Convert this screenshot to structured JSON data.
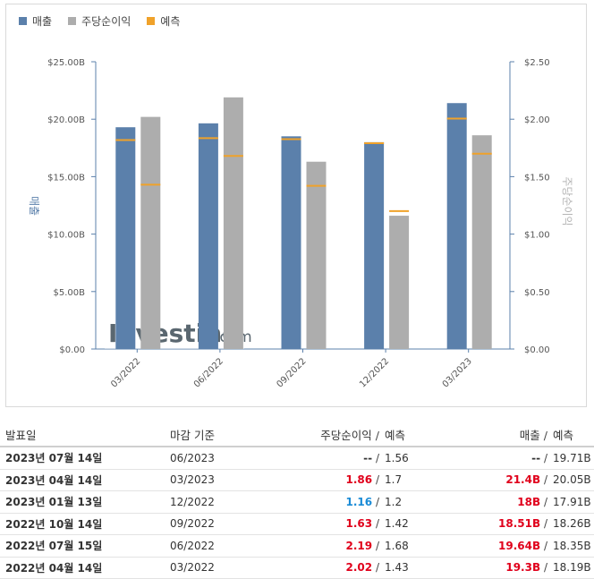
{
  "legend": {
    "revenue_label": "매출",
    "eps_label": "주당순이익",
    "forecast_label": "예측"
  },
  "colors": {
    "revenue": "#5b80ab",
    "eps": "#adadad",
    "forecast": "#f0a22a",
    "beat": "#e0001b",
    "miss": "#1a8bd6"
  },
  "watermark": {
    "brand": "Investing",
    "suffix": ".com"
  },
  "chart_data": {
    "type": "bar",
    "categories": [
      "03/2022",
      "06/2022",
      "09/2022",
      "12/2022",
      "03/2023"
    ],
    "series": [
      {
        "name": "매출",
        "axis": "left",
        "values": [
          19.3,
          19.64,
          18.51,
          18.0,
          21.4
        ],
        "forecast": [
          18.19,
          18.35,
          18.26,
          17.91,
          20.05
        ]
      },
      {
        "name": "주당순이익",
        "axis": "right",
        "values": [
          2.02,
          2.19,
          1.63,
          1.16,
          1.86
        ],
        "forecast": [
          1.43,
          1.68,
          1.42,
          1.2,
          1.7
        ]
      }
    ],
    "ylabel_left": "매출",
    "ylabel_right": "주당순이익",
    "ylim_left": [
      0,
      25
    ],
    "ylim_right": [
      0,
      2.5
    ],
    "yticks_left": [
      "$0.00",
      "$5.00B",
      "$10.00B",
      "$15.00B",
      "$20.00B",
      "$25.00B"
    ],
    "yticks_right": [
      "$0.00",
      "$0.50",
      "$1.00",
      "$1.50",
      "$2.00",
      "$2.50"
    ],
    "legend_position": "top-left",
    "grid": false
  },
  "table": {
    "headers": {
      "date": "발표일",
      "period": "마감 기준",
      "eps": "주당순이익",
      "slash": "/",
      "eps_forecast": "예측",
      "revenue": "매출",
      "revenue_forecast": "예측"
    },
    "rows": [
      {
        "date": "2023년 07월 14일",
        "period": "06/2023",
        "eps": "--",
        "eps_class": "dark",
        "eps_forecast": "1.56",
        "revenue": "--",
        "revenue_class": "dark",
        "revenue_forecast": "19.71B"
      },
      {
        "date": "2023년 04월 14일",
        "period": "03/2023",
        "eps": "1.86",
        "eps_class": "red",
        "eps_forecast": "1.7",
        "revenue": "21.4B",
        "revenue_class": "red",
        "revenue_forecast": "20.05B"
      },
      {
        "date": "2023년 01월 13일",
        "period": "12/2022",
        "eps": "1.16",
        "eps_class": "blue",
        "eps_forecast": "1.2",
        "revenue": "18B",
        "revenue_class": "red",
        "revenue_forecast": "17.91B"
      },
      {
        "date": "2022년 10월 14일",
        "period": "09/2022",
        "eps": "1.63",
        "eps_class": "red",
        "eps_forecast": "1.42",
        "revenue": "18.51B",
        "revenue_class": "red",
        "revenue_forecast": "18.26B"
      },
      {
        "date": "2022년 07월 15일",
        "period": "06/2022",
        "eps": "2.19",
        "eps_class": "red",
        "eps_forecast": "1.68",
        "revenue": "19.64B",
        "revenue_class": "red",
        "revenue_forecast": "18.35B"
      },
      {
        "date": "2022년 04월 14일",
        "period": "03/2022",
        "eps": "2.02",
        "eps_class": "red",
        "eps_forecast": "1.43",
        "revenue": "19.3B",
        "revenue_class": "red",
        "revenue_forecast": "18.19B"
      }
    ]
  }
}
